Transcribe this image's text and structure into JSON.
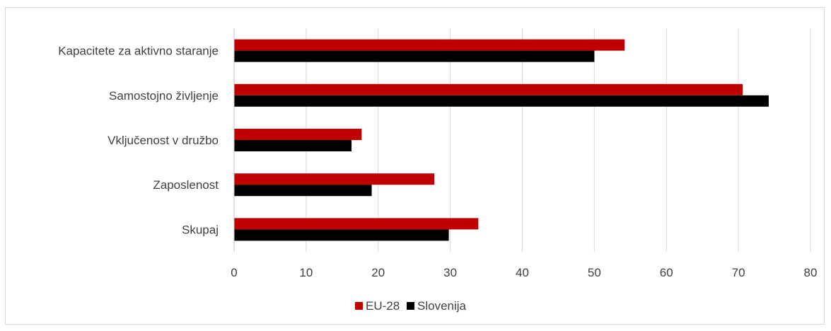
{
  "chart_data": {
    "type": "bar",
    "orientation": "horizontal",
    "categories": [
      "Kapacitete za aktivno staranje",
      "Samostojno življenje",
      "Vključenost v družbo",
      "Zaposlenost",
      "Skupaj"
    ],
    "series": [
      {
        "name": "EU-28",
        "values": [
          54.2,
          70.6,
          17.7,
          27.8,
          33.9
        ],
        "color": "#c00000"
      },
      {
        "name": "Slovenija",
        "values": [
          50.0,
          74.2,
          16.3,
          19.1,
          29.8
        ],
        "color": "#000000"
      }
    ],
    "xlim": [
      0,
      80
    ],
    "xticks": [
      "0",
      "10",
      "20",
      "30",
      "40",
      "50",
      "60",
      "70",
      "80"
    ],
    "grid": true,
    "gridColor": "#d9d9d9",
    "legend": "bottom",
    "title": "",
    "xlabel": "",
    "ylabel": ""
  }
}
